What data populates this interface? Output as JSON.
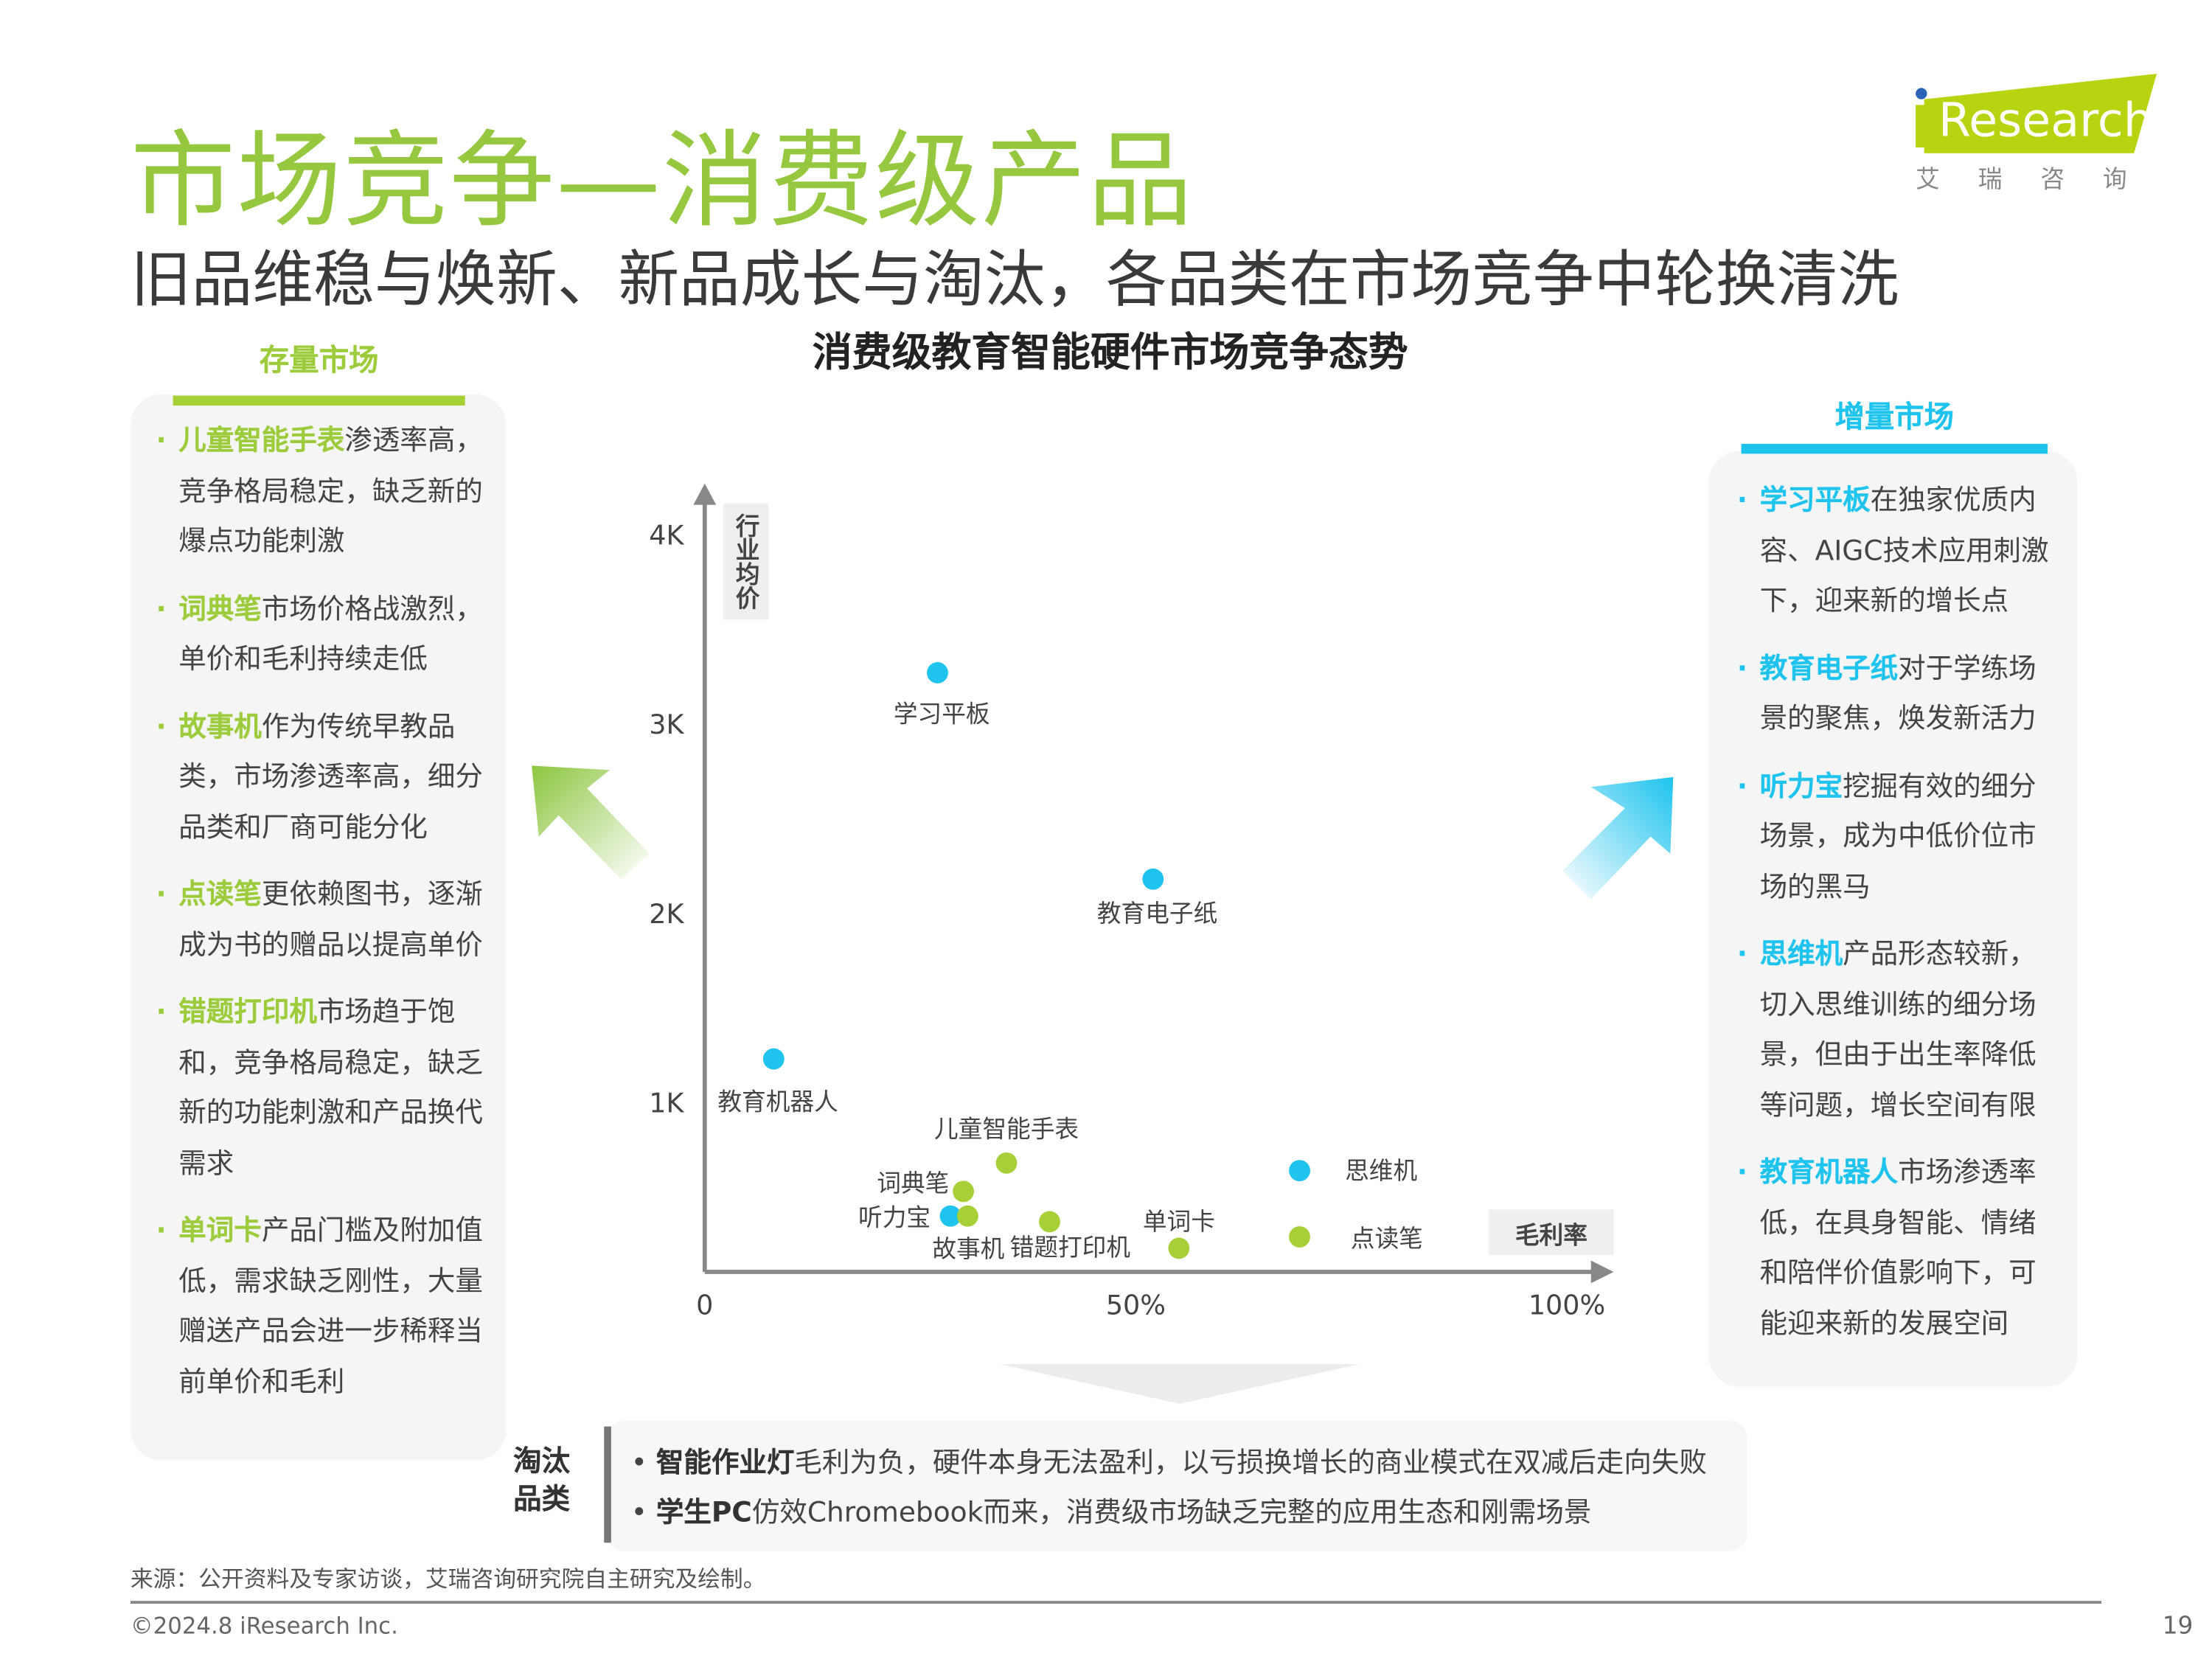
{
  "header": {
    "title": "市场竞争—消费级产品",
    "subtitle": "旧品维稳与焕新、新品成长与淘汰，各品类在市场竞争中轮换清洗",
    "logo_text": "iResearch",
    "logo_cn": "艾 瑞 咨 询"
  },
  "left_panel": {
    "heading": "存量市场",
    "items": [
      {
        "keyword": "儿童智能手表",
        "text": "渗透率高，竞争格局稳定，缺乏新的爆点功能刺激"
      },
      {
        "keyword": "词典笔",
        "text": "市场价格战激烈，单价和毛利持续走低"
      },
      {
        "keyword": "故事机",
        "text": "作为传统早教品类，市场渗透率高，细分品类和厂商可能分化"
      },
      {
        "keyword": "点读笔",
        "text": "更依赖图书，逐渐成为书的赠品以提高单价"
      },
      {
        "keyword": "错题打印机",
        "text": "市场趋于饱和，竞争格局稳定，缺乏新的功能刺激和产品换代需求"
      },
      {
        "keyword": "单词卡",
        "text": "产品门槛及附加值低，需求缺乏刚性，大量赠送产品会进一步稀释当前单价和毛利"
      }
    ]
  },
  "right_panel": {
    "heading": "增量市场",
    "items": [
      {
        "keyword": "学习平板",
        "text": "在独家优质内容、AIGC技术应用刺激下，迎来新的增长点"
      },
      {
        "keyword": "教育电子纸",
        "text": "对于学练场景的聚焦，焕发新活力"
      },
      {
        "keyword": "听力宝",
        "text": "挖掘有效的细分场景，成为中低价位市场的黑马"
      },
      {
        "keyword": "思维机",
        "text": "产品形态较新，切入思维训练的细分场景，但由于出生率降低等问题，增长空间有限"
      },
      {
        "keyword": "教育机器人",
        "text": "市场渗透率低，在具身智能、情绪和陪伴价值影响下，可能迎来新的发展空间"
      }
    ]
  },
  "eliminated": {
    "label": "淘汰品类",
    "items": [
      {
        "keyword": "智能作业灯",
        "text": "毛利为负，硬件本身无法盈利，以亏损换增长的商业模式在双减后走向失败"
      },
      {
        "keyword": "学生PC",
        "text": "仿效Chromebook而来，消费级市场缺乏完整的应用生态和刚需场景"
      }
    ]
  },
  "chart_data": {
    "type": "scatter",
    "title": "消费级教育智能硬件市场竞争态势",
    "xlabel": "毛利率",
    "ylabel": "行业均价",
    "xlim": [
      0,
      100
    ],
    "ylim": [
      0,
      4000
    ],
    "x_ticks": [
      "0",
      "50%",
      "100%"
    ],
    "y_ticks": [
      "1K",
      "2K",
      "3K",
      "4K"
    ],
    "grid": false,
    "colors": {
      "incremental": "#1ec3ee",
      "stock": "#a9cf38"
    },
    "points": [
      {
        "name": "学习平板",
        "x": 27,
        "y": 3270,
        "group": "incremental"
      },
      {
        "name": "教育电子纸",
        "x": 52,
        "y": 2180,
        "group": "incremental"
      },
      {
        "name": "教育机器人",
        "x": 8,
        "y": 1230,
        "group": "incremental"
      },
      {
        "name": "儿童智能手表",
        "x": 35,
        "y": 680,
        "group": "stock"
      },
      {
        "name": "词典笔",
        "x": 30,
        "y": 530,
        "group": "stock"
      },
      {
        "name": "听力宝",
        "x": 28.5,
        "y": 400,
        "group": "incremental"
      },
      {
        "name": "故事机",
        "x": 30.5,
        "y": 400,
        "group": "stock"
      },
      {
        "name": "错题打印机",
        "x": 40,
        "y": 370,
        "group": "stock"
      },
      {
        "name": "单词卡",
        "x": 55,
        "y": 230,
        "group": "stock"
      },
      {
        "name": "思维机",
        "x": 69,
        "y": 640,
        "group": "incremental"
      },
      {
        "name": "点读笔",
        "x": 69,
        "y": 290,
        "group": "stock"
      }
    ]
  },
  "footer": {
    "source": "来源：公开资料及专家访谈，艾瑞咨询研究院自主研究及绘制。",
    "copyright": "©2024.8 iResearch Inc.",
    "page": "19"
  }
}
